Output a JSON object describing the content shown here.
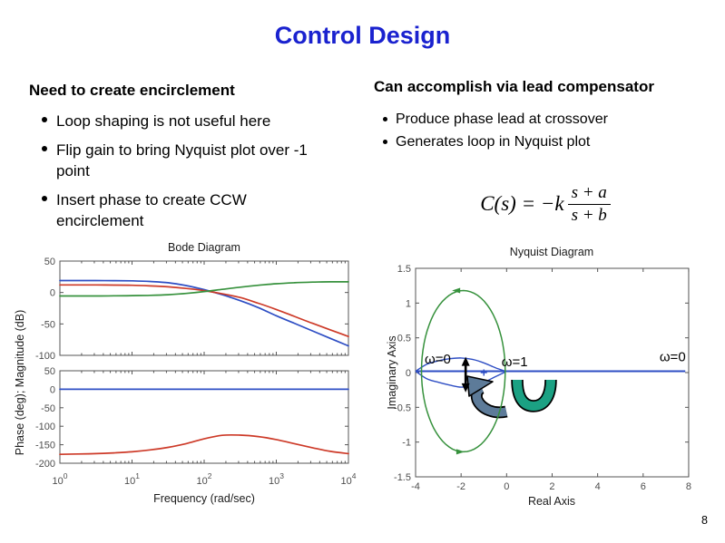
{
  "slide": {
    "title": "Control Design",
    "page_number": "8",
    "left_column": {
      "heading": "Need to create encirclement",
      "bullets": [
        {
          "lines": [
            "Loop shaping is not useful here",
            ""
          ]
        },
        {
          "lines": [
            "Flip gain to bring Nyquist plot over -1",
            "point"
          ]
        },
        {
          "lines": [
            "Insert phase to create CCW",
            "encirclement"
          ]
        }
      ]
    },
    "right_column": {
      "heading": "Can accomplish via lead compensator",
      "bullets": [
        "Produce phase lead at crossover",
        "Generates loop in Nyquist plot"
      ],
      "formula": {
        "lhs": "C(s) = −k",
        "numerator": "s + a",
        "denominator": "s + b"
      }
    }
  },
  "colors": {
    "title_blue": "#1a22cf",
    "blue": "#2e4ec4",
    "red": "#cd3a28",
    "green": "#36913c",
    "teal": "#1ba183",
    "grey_arrow": "#5d7b99",
    "axis": "#555555",
    "tick_text": "#4d4d4d",
    "label_text": "#1a1a1a",
    "black": "#000000"
  },
  "chart_data": [
    {
      "id": "bode",
      "type": "line",
      "title": "Bode Diagram",
      "xlabel": "Frequency (rad/sec)",
      "ylabel": "Phase (deg); Magnitude (dB)",
      "x_scale": "log10",
      "x_tick_exponents": [
        0,
        1,
        2,
        3,
        4
      ],
      "subplots": [
        {
          "name": "magnitude",
          "ylim": [
            -100,
            50
          ],
          "yticks": [
            50,
            0,
            -50,
            -100
          ],
          "series": [
            {
              "name": "flipped-plant-magnitude",
              "color_key": "blue",
              "x_log10": [
                0,
                0.25,
                0.5,
                0.75,
                1,
                1.25,
                1.5,
                1.75,
                2,
                2.25,
                2.5,
                2.75,
                3,
                3.25,
                3.5,
                3.75,
                4
              ],
              "y": [
                19,
                19,
                19,
                18.8,
                18.5,
                17.5,
                15.5,
                11,
                4.5,
                -3.5,
                -13,
                -24,
                -37,
                -49,
                -61,
                -73,
                -85
              ]
            },
            {
              "name": "compensated-loop-magnitude",
              "color_key": "red",
              "x_log10": [
                0,
                0.25,
                0.5,
                0.75,
                1,
                1.25,
                1.5,
                1.75,
                2,
                2.25,
                2.5,
                2.75,
                3,
                3.25,
                3.5,
                3.75,
                4
              ],
              "y": [
                12,
                12,
                12,
                11.8,
                11.5,
                10.5,
                9,
                6.5,
                3,
                -2,
                -8,
                -17,
                -27,
                -38,
                -49,
                -59.5,
                -70
              ]
            },
            {
              "name": "lead-compensator-magnitude",
              "color_key": "green",
              "x_log10": [
                0,
                0.25,
                0.5,
                0.75,
                1,
                1.25,
                1.5,
                1.75,
                2,
                2.25,
                2.5,
                2.75,
                3,
                3.25,
                3.5,
                3.75,
                4
              ],
              "y": [
                -5.5,
                -5.5,
                -5.5,
                -5.3,
                -5,
                -4.5,
                -3.5,
                -1.5,
                1.5,
                5,
                8.5,
                11.5,
                14,
                15.5,
                16.5,
                17,
                17
              ]
            }
          ]
        },
        {
          "name": "phase",
          "ylim": [
            -200,
            50
          ],
          "yticks": [
            50,
            0,
            -50,
            -100,
            -150,
            -200
          ],
          "series": [
            {
              "name": "flipped-plant-phase",
              "color_key": "blue",
              "x_log10": [
                0,
                4
              ],
              "y": [
                0,
                0
              ]
            },
            {
              "name": "compensated-loop-phase",
              "color_key": "red",
              "x_log10": [
                0,
                0.25,
                0.5,
                0.75,
                1,
                1.25,
                1.5,
                1.75,
                2,
                2.25,
                2.5,
                2.75,
                3,
                3.25,
                3.5,
                3.75,
                4
              ],
              "y": [
                -176,
                -175,
                -174,
                -172,
                -169,
                -164,
                -157,
                -147,
                -134,
                -124.5,
                -124,
                -128,
                -136,
                -147,
                -158,
                -168,
                -174
              ]
            }
          ]
        }
      ]
    },
    {
      "id": "nyquist",
      "type": "line",
      "title": "Nyquist Diagram",
      "xlabel": "Real Axis",
      "ylabel": "Imaginary Axis",
      "xlim": [
        -4,
        8
      ],
      "ylim": [
        -1.5,
        1.5
      ],
      "xticks": [
        -4,
        -2,
        0,
        2,
        4,
        6,
        8
      ],
      "yticks": [
        1.5,
        1,
        0.5,
        0,
        -0.5,
        -1,
        -1.5
      ],
      "series": [
        {
          "name": "nyquist-real-axis-branch",
          "color_key": "blue",
          "points": [
            [
              -4.0,
              0.02
            ],
            [
              7.85,
              0.02
            ]
          ]
        },
        {
          "name": "nyquist-lens-upper",
          "color_key": "blue",
          "points": [
            [
              -4.0,
              0.02
            ],
            [
              -3.5,
              0.12
            ],
            [
              -3.0,
              0.17
            ],
            [
              -2.5,
              0.2
            ],
            [
              -2.0,
              0.21
            ],
            [
              -1.5,
              0.19
            ],
            [
              -1.0,
              0.14
            ],
            [
              -0.5,
              0.07
            ],
            [
              -0.05,
              0.02
            ]
          ]
        },
        {
          "name": "nyquist-lens-lower",
          "color_key": "blue",
          "points": [
            [
              -4.0,
              0.02
            ],
            [
              -3.5,
              -0.09
            ],
            [
              -3.0,
              -0.14
            ],
            [
              -2.5,
              -0.18
            ],
            [
              -2.0,
              -0.21
            ],
            [
              -1.5,
              -0.19
            ],
            [
              -1.0,
              -0.14
            ],
            [
              -0.5,
              -0.06
            ],
            [
              -0.05,
              0.01
            ]
          ]
        }
      ],
      "encirclement_loop": {
        "name": "encirclement-loop",
        "color_key": "green",
        "cx": -1.9,
        "cy": 0.02,
        "rx": 1.84,
        "ry": 1.16,
        "arrow_top_dir": "left",
        "arrow_bottom_dir": "right"
      },
      "marker": {
        "name": "minus-one-point-marker",
        "type": "plus",
        "x": -1.0,
        "y": 0.0,
        "color_key": "blue"
      },
      "double_arrow": {
        "name": "loop-height-double-arrow",
        "x": -1.8,
        "y1": 0.2,
        "y2": -0.26
      },
      "decorations": [
        {
          "name": "grey-curl-arrow",
          "color_key": "grey_arrow"
        },
        {
          "name": "teal-curl-arrow",
          "color_key": "teal"
        }
      ],
      "annotations": [
        {
          "name": "omega-zero-left-label",
          "text": "ω=0",
          "x": -3.6,
          "y": 0.13,
          "anchor": "start"
        },
        {
          "name": "omega-one-label",
          "text": "ω=1",
          "x": -0.22,
          "y": 0.09,
          "anchor": "start"
        },
        {
          "name": "omega-zero-right-label",
          "text": "ω=0",
          "x": 6.72,
          "y": 0.16,
          "anchor": "start"
        }
      ]
    }
  ]
}
